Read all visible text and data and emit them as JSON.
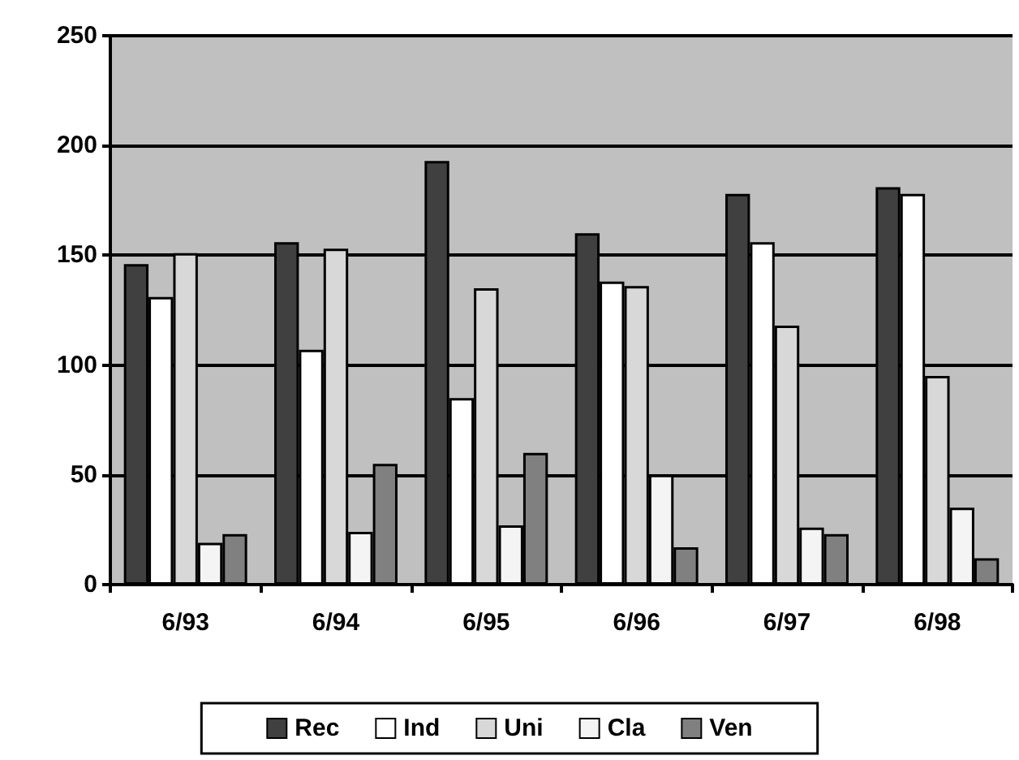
{
  "chart_data": {
    "type": "bar",
    "categories": [
      "6/93",
      "6/94",
      "6/95",
      "6/96",
      "6/97",
      "6/98"
    ],
    "series": [
      {
        "name": "Rec",
        "color": "#404040",
        "values": [
          146,
          156,
          193,
          160,
          178,
          181
        ]
      },
      {
        "name": "Ind",
        "color": "#ffffff",
        "values": [
          131,
          107,
          85,
          138,
          156,
          178
        ]
      },
      {
        "name": "Uni",
        "color": "#d8d8d8",
        "values": [
          151,
          153,
          135,
          136,
          118,
          95
        ]
      },
      {
        "name": "Cla",
        "color": "#f4f4f4",
        "values": [
          19,
          24,
          27,
          50,
          26,
          35
        ]
      },
      {
        "name": "Ven",
        "color": "#808080",
        "values": [
          23,
          55,
          60,
          17,
          23,
          12
        ]
      }
    ],
    "ylim": [
      0,
      250
    ],
    "yticks": [
      0,
      50,
      100,
      150,
      200,
      250
    ],
    "grid": "y",
    "legend": "bottom"
  }
}
